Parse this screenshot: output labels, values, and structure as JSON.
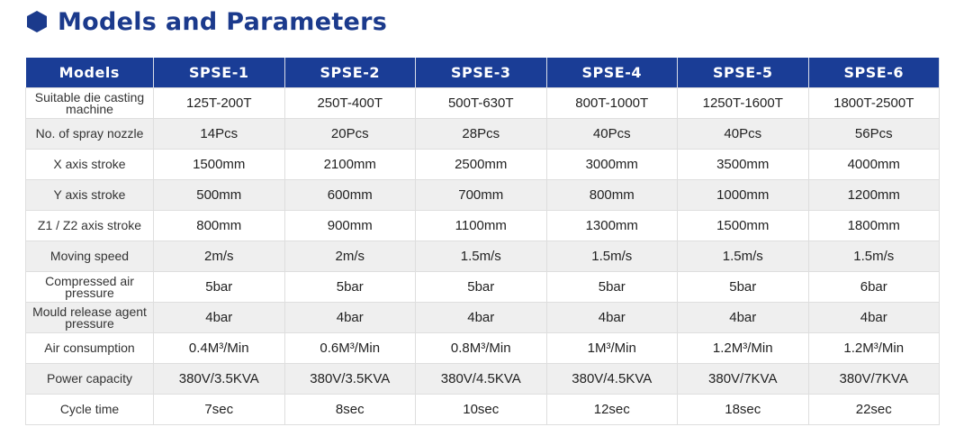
{
  "title": "Models and Parameters",
  "colors": {
    "accent": "#1a3d96",
    "title": "#1b3a8c",
    "stripe": "#efefef"
  },
  "table": {
    "headers": [
      "Models",
      "SPSE-1",
      "SPSE-2",
      "SPSE-3",
      "SPSE-4",
      "SPSE-5",
      "SPSE-6"
    ],
    "rows": [
      {
        "label": "Suitable die casting  machine",
        "values": [
          "125T-200T",
          "250T-400T",
          "500T-630T",
          "800T-1000T",
          "1250T-1600T",
          "1800T-2500T"
        ]
      },
      {
        "label": "No. of spray nozzle",
        "values": [
          "14Pcs",
          "20Pcs",
          "28Pcs",
          "40Pcs",
          "40Pcs",
          "56Pcs"
        ]
      },
      {
        "label": "X axis stroke",
        "values": [
          "1500mm",
          "2100mm",
          "2500mm",
          "3000mm",
          "3500mm",
          "4000mm"
        ]
      },
      {
        "label": "Y axis stroke",
        "values": [
          "500mm",
          "600mm",
          "700mm",
          "800mm",
          "1000mm",
          "1200mm"
        ]
      },
      {
        "label": "Z1 / Z2 axis stroke",
        "values": [
          "800mm",
          "900mm",
          "1100mm",
          "1300mm",
          "1500mm",
          "1800mm"
        ]
      },
      {
        "label": "Moving speed",
        "values": [
          "2m/s",
          "2m/s",
          "1.5m/s",
          "1.5m/s",
          "1.5m/s",
          "1.5m/s"
        ]
      },
      {
        "label": "Compressed air pressure",
        "values": [
          "5bar",
          "5bar",
          "5bar",
          "5bar",
          "5bar",
          "6bar"
        ]
      },
      {
        "label": "Mould release agent pressure",
        "values": [
          "4bar",
          "4bar",
          "4bar",
          "4bar",
          "4bar",
          "4bar"
        ]
      },
      {
        "label": "Air consumption",
        "values": [
          "0.4M³/Min",
          "0.6M³/Min",
          "0.8M³/Min",
          "1M³/Min",
          "1.2M³/Min",
          "1.2M³/Min"
        ]
      },
      {
        "label": "Power capacity",
        "values": [
          "380V/3.5KVA",
          "380V/3.5KVA",
          "380V/4.5KVA",
          "380V/4.5KVA",
          "380V/7KVA",
          "380V/7KVA"
        ]
      },
      {
        "label": "Cycle time",
        "values": [
          "7sec",
          "8sec",
          "10sec",
          "12sec",
          "18sec",
          "22sec"
        ]
      }
    ]
  }
}
